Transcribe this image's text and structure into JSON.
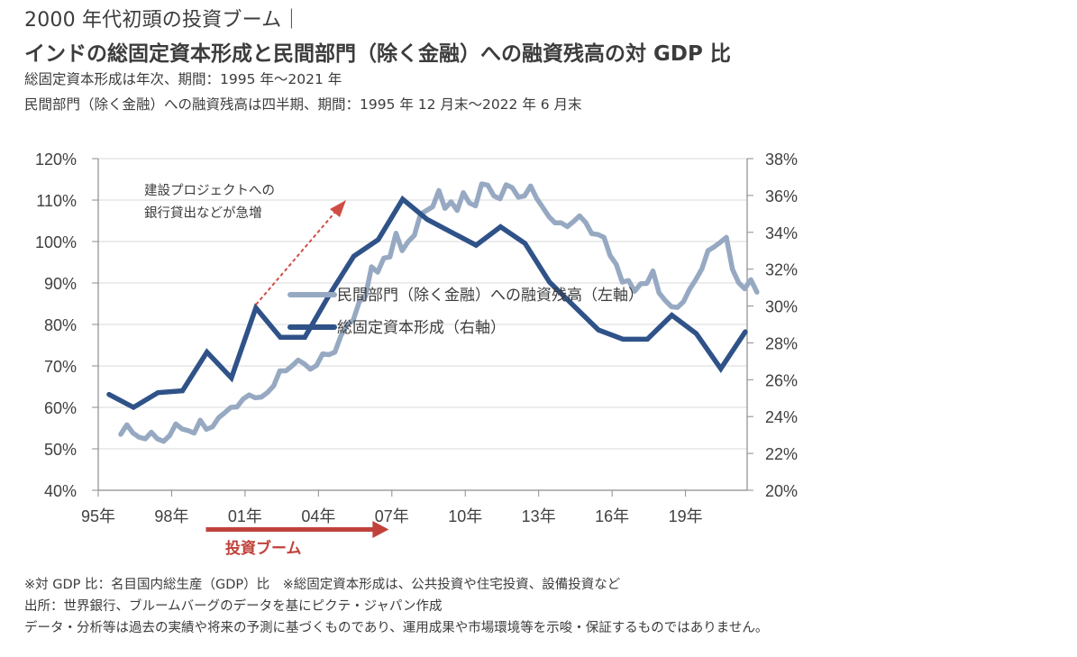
{
  "header": {
    "title_line1": "2000 年代初頭の投資ブーム｜",
    "title_line2": "インドの総固定資本形成と民間部門（除く金融）への融資残高の対 GDP 比",
    "subtitle_line1": "総固定資本形成は年次、期間：1995 年～2021 年",
    "subtitle_line2": "民間部門（除く金融）への融資残高は四半期、期間：1995 年 12 月末～2022 年 6 月末"
  },
  "footnotes": {
    "line1": "※対 GDP 比：名目国内総生産（GDP）比　※総固定資本形成は、公共投資や住宅投資、設備投資など",
    "line2": "出所：世界銀行、ブルームバーグのデータを基にピクテ・ジャパン作成",
    "line3": "データ・分析等は過去の実績や将来の予測に基づくものであり、運用成果や市場環境等を示唆・保証するものではありません。"
  },
  "chart_data": {
    "type": "line",
    "title": "インドの総固定資本形成と民間部門（除く金融）への融資残高の対 GDP 比",
    "xlabel": "",
    "x_ticks": [
      "95年",
      "98年",
      "01年",
      "04年",
      "07年",
      "10年",
      "13年",
      "16年",
      "19年"
    ],
    "x_tick_years": [
      1995,
      1998,
      2001,
      2004,
      2007,
      2010,
      2013,
      2016,
      2019
    ],
    "xlim": [
      1995,
      2022.5
    ],
    "left_axis": {
      "ticks": [
        "40%",
        "50%",
        "60%",
        "70%",
        "80%",
        "90%",
        "100%",
        "110%",
        "120%"
      ],
      "ylim": [
        40,
        120
      ]
    },
    "right_axis": {
      "ticks": [
        "20%",
        "22%",
        "24%",
        "26%",
        "28%",
        "30%",
        "32%",
        "34%",
        "36%",
        "38%"
      ],
      "ylim": [
        20,
        38
      ]
    },
    "grid": true,
    "legend_position": "bottom-center",
    "series": [
      {
        "name": "民間部門（除く金融）への融資残高（左軸）",
        "axis": "left",
        "frequency": "quarterly",
        "color": "#97a9c2",
        "x_start": 1995.92,
        "x_step": 0.25,
        "values": [
          53.5,
          55.8,
          53.8,
          52.8,
          52.4,
          54.0,
          52.4,
          51.8,
          53.2,
          56.0,
          54.8,
          54.4,
          53.8,
          56.9,
          54.7,
          55.3,
          57.5,
          58.7,
          60.0,
          60.1,
          62.0,
          63.0,
          62.3,
          62.5,
          63.6,
          65.2,
          68.8,
          68.8,
          70.0,
          71.4,
          70.5,
          69.2,
          70.1,
          72.9,
          72.7,
          73.3,
          77.3,
          80.0,
          81.0,
          85.5,
          86.8,
          93.9,
          92.6,
          96.0,
          96.3,
          102.0,
          97.8,
          100.0,
          101.5,
          106.6,
          107.5,
          108.4,
          112.3,
          108.0,
          109.6,
          107.5,
          111.8,
          109.3,
          108.6,
          113.9,
          113.6,
          111.0,
          110.3,
          113.7,
          113.0,
          110.7,
          111.0,
          113.4,
          110.4,
          108.2,
          106.0,
          104.5,
          104.5,
          103.6,
          104.8,
          106.2,
          104.6,
          101.9,
          101.7,
          101.0,
          96.6,
          94.5,
          90.2,
          90.6,
          88.0,
          89.8,
          89.9,
          92.9,
          87.6,
          85.8,
          84.3,
          84.1,
          85.5,
          88.5,
          90.8,
          93.4,
          97.8,
          98.7,
          99.8,
          101.0,
          93.3,
          90.1,
          88.6,
          90.8,
          87.8
        ]
      },
      {
        "name": "総固定資本形成（右軸）",
        "axis": "right",
        "frequency": "annual",
        "color": "#2f5288",
        "x": [
          1995,
          1996,
          1997,
          1998,
          1999,
          2000,
          2001,
          2002,
          2003,
          2004,
          2005,
          2006,
          2007,
          2008,
          2009,
          2010,
          2011,
          2012,
          2013,
          2014,
          2015,
          2016,
          2017,
          2018,
          2019,
          2020,
          2021
        ],
        "values": [
          25.2,
          24.5,
          25.3,
          25.4,
          27.5,
          26.1,
          29.9,
          28.3,
          28.3,
          30.6,
          32.7,
          33.6,
          35.8,
          34.7,
          34.0,
          33.3,
          34.3,
          33.4,
          31.3,
          30.0,
          28.7,
          28.2,
          28.2,
          29.5,
          28.5,
          26.6,
          28.6
        ]
      }
    ],
    "annotations": {
      "note_line1": "建設プロジェクトへの",
      "note_line2": "銀行貸出などが急増",
      "boom_label": "投資ブーム",
      "boom_range": [
        1999.4,
        2006.8
      ],
      "note_arrow_color": "#cf4d45",
      "boom_arrow_color": "#c0423b"
    }
  }
}
